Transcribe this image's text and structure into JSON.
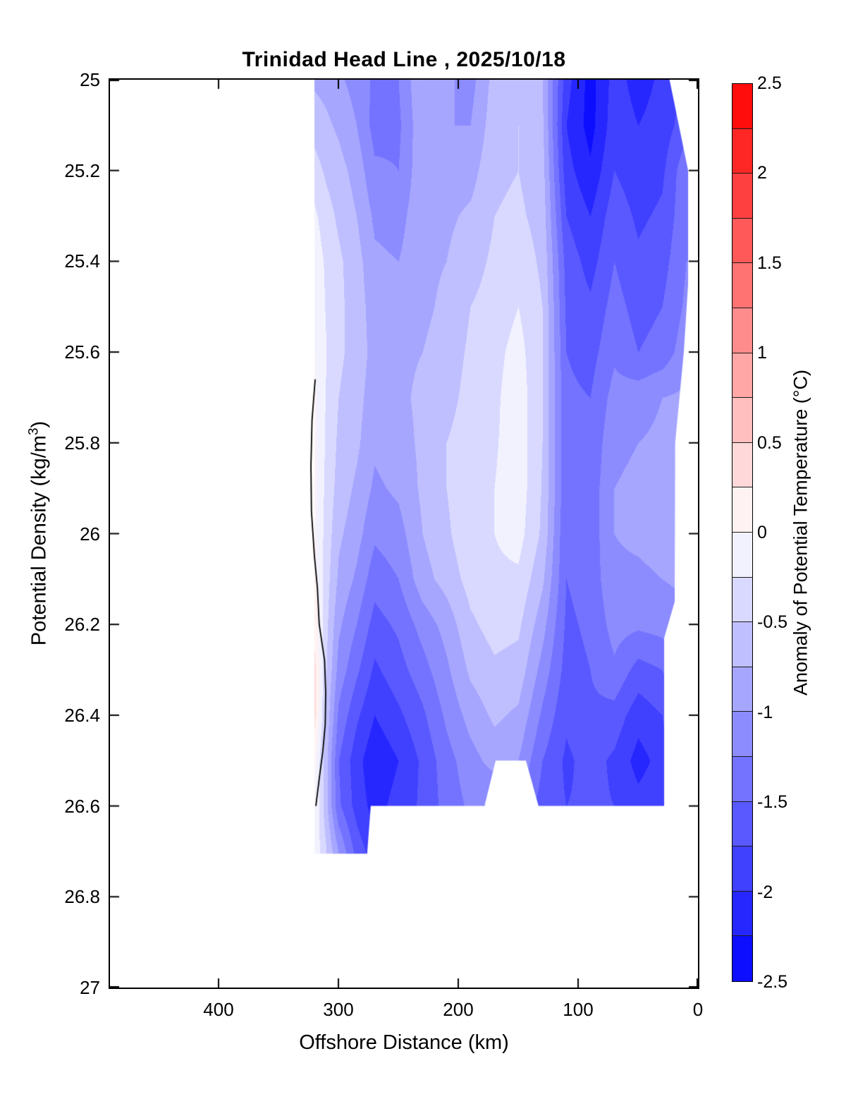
{
  "title": "Trinidad Head Line , 2025/10/18",
  "chart_data": {
    "type": "heatmap",
    "subtype": "filled-contour-section",
    "title": "Trinidad Head Line , 2025/10/18",
    "xlabel": "Offshore Distance (km)",
    "ylabel_prefix": "Potential Density (kg/m",
    "ylabel_sup": "3",
    "ylabel_suffix": ")",
    "colorbar_label": "Anomaly of Potential Temperature (°C)",
    "x_axis": {
      "ticks": [
        400,
        300,
        200,
        100,
        0
      ],
      "range_km": [
        491,
        0
      ],
      "reversed": true,
      "unit": "km"
    },
    "y_axis": {
      "ticks": [
        25,
        25.2,
        25.4,
        25.6,
        25.8,
        26,
        26.2,
        26.4,
        26.6,
        26.8,
        27
      ],
      "range": [
        25,
        27
      ]
    },
    "levels": {
      "min": -2.5,
      "max": 2.5,
      "step": 0.25
    },
    "colormap": {
      "negative_end": "#0000FF",
      "zero": "#FFFFFF",
      "positive_end": "#FF0000"
    },
    "colorbar_ticks": [
      2.5,
      2,
      1.5,
      1,
      0.5,
      0,
      -0.5,
      -1,
      -1.5,
      -2,
      -2.5
    ],
    "grid": {
      "columns_km": [
        320,
        310,
        300,
        285,
        270,
        250,
        230,
        210,
        190,
        170,
        150,
        130,
        110,
        90,
        70,
        50,
        30,
        10
      ],
      "rows_density": [
        25.0,
        25.1,
        25.2,
        25.3,
        25.4,
        25.5,
        25.6,
        25.7,
        25.8,
        25.9,
        26.0,
        26.1,
        26.2,
        26.3,
        26.4,
        26.5,
        26.6,
        26.7
      ],
      "values": [
        [
          -0.8,
          -0.85,
          -0.95,
          -1.1,
          -1.3,
          -1.25,
          -0.75,
          -0.95,
          -1.1,
          -0.65,
          -0.55,
          -0.75,
          -1.9,
          -2.35,
          -1.9,
          -2.1,
          -1.95,
          -1.7
        ],
        [
          -0.6,
          -0.7,
          -0.8,
          -1.0,
          -1.35,
          -1.3,
          -0.8,
          -1.0,
          -1.0,
          -0.6,
          -0.5,
          -0.7,
          -2.0,
          -2.35,
          -1.85,
          -2.0,
          -1.9,
          -1.6
        ],
        [
          -0.4,
          -0.55,
          -0.65,
          -0.85,
          -1.2,
          -1.25,
          -0.8,
          -0.9,
          -0.85,
          -0.55,
          -0.5,
          -0.65,
          -1.9,
          -2.2,
          -1.75,
          -1.9,
          -1.8,
          -1.3
        ],
        [
          -0.2,
          -0.4,
          -0.55,
          -0.75,
          -1.05,
          -1.1,
          -0.8,
          -0.8,
          -0.7,
          -0.5,
          -0.45,
          -0.6,
          -1.75,
          -2.0,
          -1.6,
          -1.8,
          -1.7,
          -1.3
        ],
        [
          -0.1,
          -0.3,
          -0.45,
          -0.65,
          -0.95,
          -1.0,
          -0.8,
          -0.75,
          -0.6,
          -0.45,
          -0.35,
          -0.55,
          -1.6,
          -1.85,
          -1.5,
          -1.7,
          -1.6,
          -1.25
        ],
        [
          -0.05,
          -0.28,
          -0.45,
          -0.6,
          -0.9,
          -0.9,
          -0.8,
          -0.7,
          -0.5,
          -0.4,
          -0.25,
          -0.5,
          -1.55,
          -1.7,
          -1.4,
          -1.6,
          -1.5,
          -1.2
        ],
        [
          0.0,
          -0.25,
          -0.45,
          -0.6,
          -0.85,
          -0.8,
          -0.75,
          -0.65,
          -0.45,
          -0.33,
          -0.15,
          -0.5,
          -1.5,
          -1.6,
          -1.3,
          -1.5,
          -1.4,
          -1.1
        ],
        [
          0.02,
          -0.28,
          -0.5,
          -0.65,
          -0.9,
          -0.8,
          -0.7,
          -0.6,
          -0.4,
          -0.3,
          -0.1,
          -0.5,
          -1.45,
          -1.5,
          -1.15,
          -1.1,
          -1.0,
          -0.95
        ],
        [
          0.03,
          -0.3,
          -0.55,
          -0.7,
          -0.95,
          -0.85,
          -0.7,
          -0.5,
          -0.35,
          -0.28,
          -0.1,
          -0.5,
          -1.45,
          -1.45,
          -1.05,
          -1.0,
          -0.95,
          -0.9
        ],
        [
          0.03,
          -0.33,
          -0.6,
          -0.8,
          -1.05,
          -0.95,
          -0.7,
          -0.5,
          -0.3,
          -0.25,
          -0.1,
          -0.52,
          -1.45,
          -1.4,
          -1.0,
          -0.95,
          -0.9,
          -0.85
        ],
        [
          0.02,
          -0.36,
          -0.7,
          -0.9,
          -1.2,
          -1.1,
          -0.75,
          -0.55,
          -0.3,
          -0.25,
          -0.15,
          -0.55,
          -1.5,
          -1.4,
          -1.0,
          -0.95,
          -0.9,
          -0.85
        ],
        [
          0.05,
          -0.4,
          -0.8,
          -1.05,
          -1.4,
          -1.25,
          -0.85,
          -0.65,
          -0.4,
          -0.3,
          -0.3,
          -0.7,
          -1.5,
          -1.4,
          -1.05,
          -1.05,
          -1.0,
          -0.95
        ],
        [
          0.15,
          -0.45,
          -0.95,
          -1.25,
          -1.6,
          -1.45,
          -1.15,
          -0.9,
          -0.55,
          -0.4,
          -0.45,
          -0.9,
          -1.55,
          -1.45,
          -1.15,
          -1.2,
          -1.15,
          -1.05
        ],
        [
          0.32,
          -0.5,
          -1.1,
          -1.45,
          -1.8,
          -1.6,
          -1.35,
          -1.05,
          -0.7,
          -0.55,
          -0.6,
          -1.1,
          -1.6,
          -1.5,
          -1.3,
          -1.6,
          -1.5,
          -1.1
        ],
        [
          0.32,
          -0.6,
          -1.3,
          -1.7,
          -2.0,
          -1.8,
          -1.55,
          -1.2,
          -0.9,
          -0.7,
          -0.8,
          -1.3,
          -1.7,
          -1.55,
          -1.6,
          -1.9,
          -1.75,
          -1.2
        ],
        [
          0.05,
          -0.7,
          -1.5,
          -1.9,
          -2.2,
          -2.0,
          -1.7,
          -1.35,
          -1.1,
          -0.9,
          -1.0,
          -1.5,
          -1.8,
          -1.65,
          -1.8,
          -2.1,
          -1.9,
          -1.3
        ],
        [
          0.0,
          -0.7,
          -1.45,
          -1.85,
          -2.1,
          -1.9,
          -1.7,
          -1.4,
          -1.2,
          -1.3,
          -1.3,
          -1.6,
          -1.75,
          -1.7,
          -1.75,
          -1.9,
          -1.8,
          -1.3
        ],
        [
          -0.05,
          -0.5,
          -1.0,
          -1.6,
          -1.9,
          -1.7,
          -1.5,
          -1.3,
          -1.2,
          -1.2,
          -1.2,
          -1.5,
          -1.6,
          -1.6,
          -1.6,
          -1.7,
          -1.6,
          -1.2
        ]
      ]
    },
    "zero_contour_km_density": [
      [
        319.4,
        25.66
      ],
      [
        322.0,
        25.75
      ],
      [
        322.9,
        25.85
      ],
      [
        322.5,
        25.95
      ],
      [
        320.0,
        26.05
      ],
      [
        317.5,
        26.12
      ],
      [
        316.0,
        26.2
      ],
      [
        311.5,
        26.28
      ],
      [
        310.6,
        26.35
      ],
      [
        311.0,
        26.42
      ],
      [
        313.0,
        26.48
      ],
      [
        316.0,
        26.54
      ],
      [
        318.8,
        26.6
      ]
    ],
    "mask_regions_km_density": {
      "nearshore_wedge": [
        [
          27.6,
          24.95
        ],
        [
          8.2,
          25.2
        ],
        [
          8.2,
          25.45
        ],
        [
          11.8,
          25.6
        ],
        [
          19.0,
          25.8
        ],
        [
          19.4,
          26.15
        ],
        [
          28.2,
          26.23
        ],
        [
          28.2,
          26.76
        ],
        [
          -2,
          26.76
        ],
        [
          -2,
          24.95
        ]
      ],
      "bottom_no_data": [
        [
          -2,
          26.6
        ],
        [
          273,
          26.6
        ],
        [
          276,
          26.705
        ],
        [
          321,
          26.705
        ],
        [
          321,
          26.78
        ],
        [
          -2,
          26.78
        ]
      ],
      "mid_bottom_notch": [
        [
          132,
          26.61
        ],
        [
          143.5,
          26.5
        ],
        [
          168.8,
          26.5
        ],
        [
          179,
          26.61
        ]
      ]
    },
    "data_extent": {
      "km_min": 0,
      "km_max": 320,
      "density_min": 25.0,
      "density_max": 26.7
    }
  },
  "layout_text": {
    "x_tick_labels": [
      "400",
      "300",
      "200",
      "100",
      "0"
    ],
    "y_tick_labels": [
      "25",
      "25.2",
      "25.4",
      "25.6",
      "25.8",
      "26",
      "26.2",
      "26.4",
      "26.6",
      "26.8",
      "27"
    ],
    "colorbar_tick_labels": [
      "2.5",
      "2",
      "1.5",
      "1",
      "0.5",
      "0",
      "-0.5",
      "-1",
      "-1.5",
      "-2",
      "-2.5"
    ]
  }
}
